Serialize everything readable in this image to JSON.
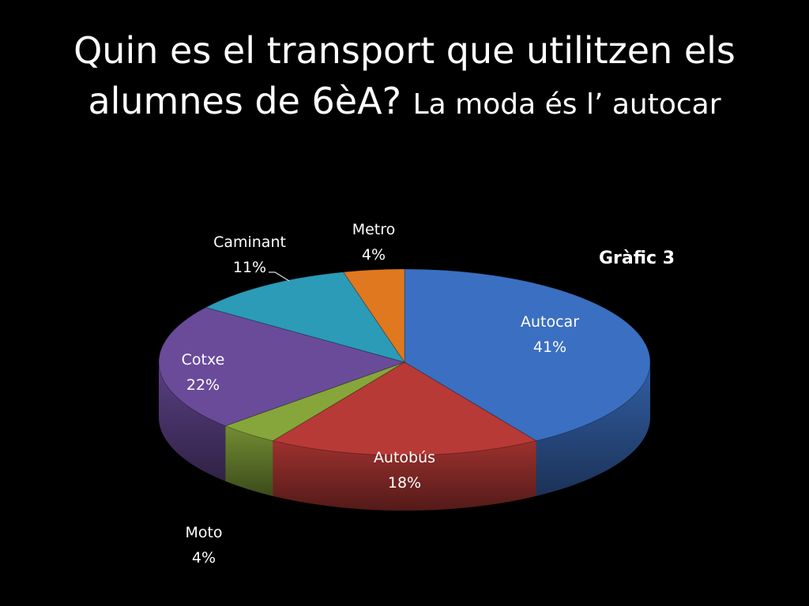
{
  "slide": {
    "title_main": "Quin es el transport que utilitzen els alumnes de 6èA?",
    "title_sub": "La moda és l’ autocar"
  },
  "chart_data": {
    "type": "pie",
    "title": "Gràfic 3",
    "three_d": true,
    "slices": [
      {
        "label": "Autocar",
        "value": 41,
        "pct": "41%",
        "color": "#3b6fc1"
      },
      {
        "label": "Autobús",
        "value": 18,
        "pct": "18%",
        "color": "#b83a36"
      },
      {
        "label": "Moto",
        "value": 4,
        "pct": "4%",
        "color": "#86a63b"
      },
      {
        "label": "Cotxe",
        "value": 22,
        "pct": "22%",
        "color": "#6a4b9a"
      },
      {
        "label": "Caminant",
        "value": 11,
        "pct": "11%",
        "color": "#2b9bb8"
      },
      {
        "label": "Metro",
        "value": 4,
        "pct": "4%",
        "color": "#e0781f"
      }
    ]
  }
}
